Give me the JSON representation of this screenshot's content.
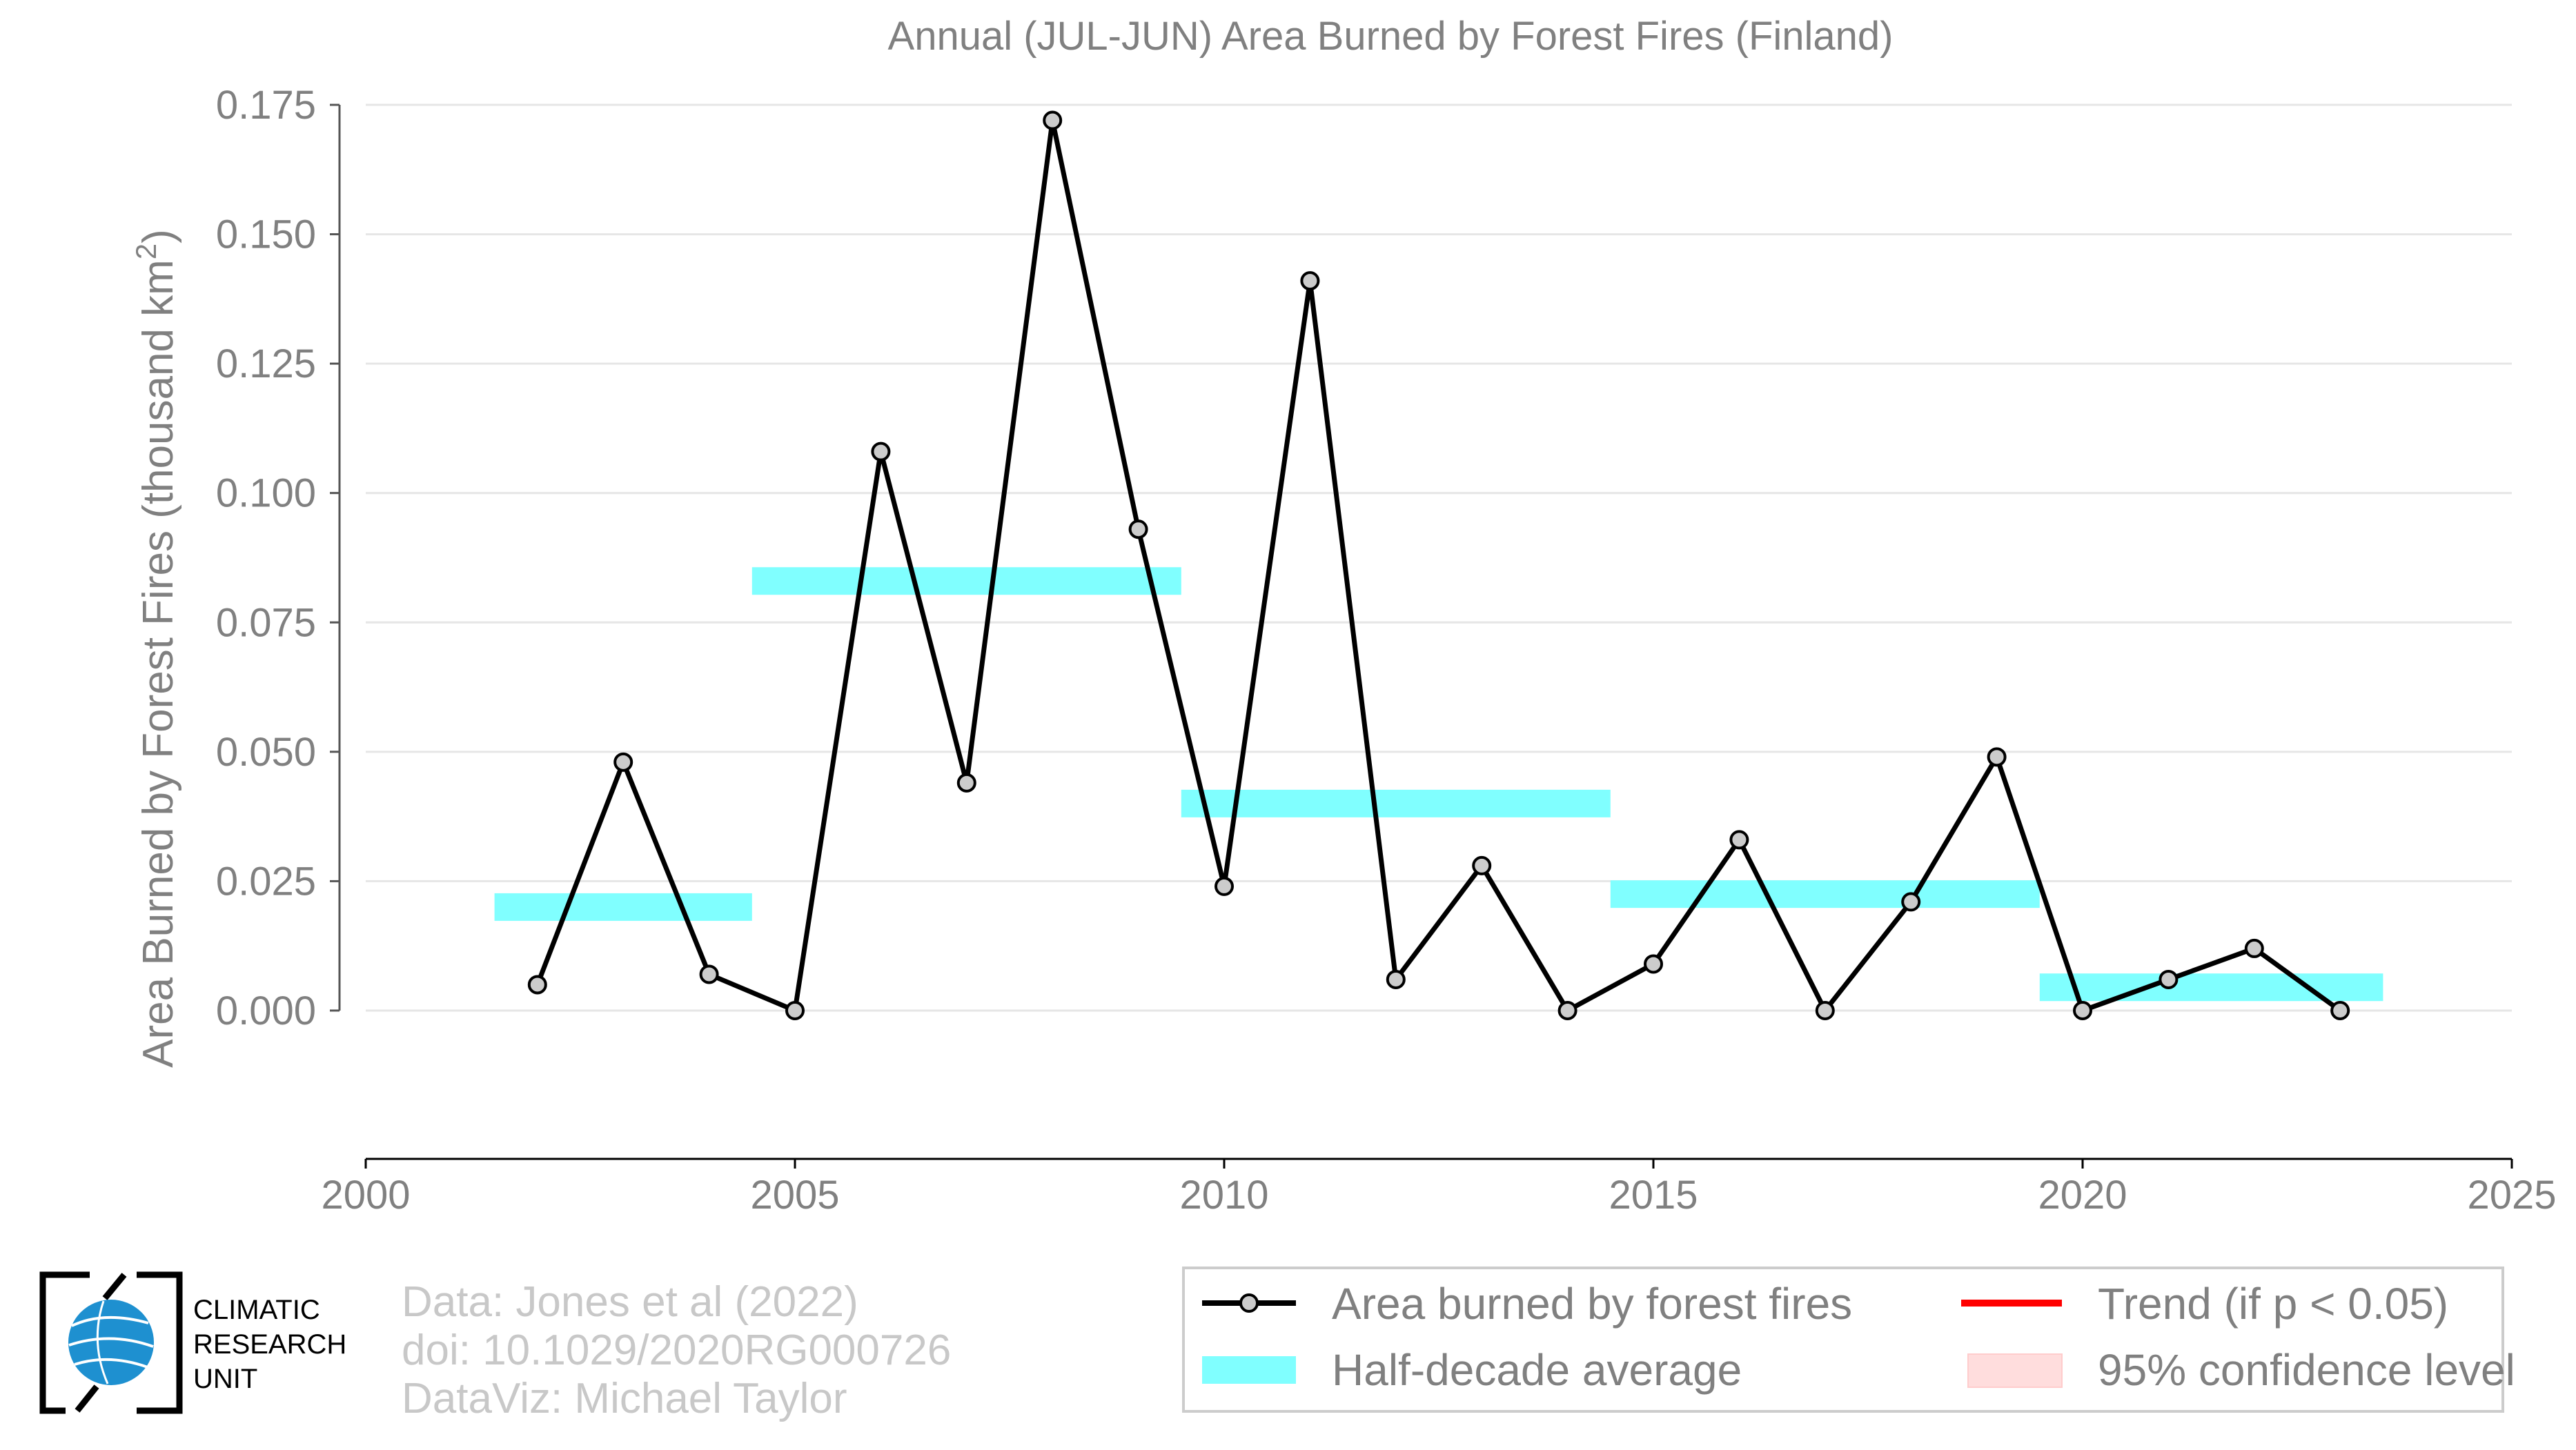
{
  "chart_data": {
    "type": "line",
    "title": "Annual (JUL-JUN) Area Burned by Forest Fires (Finland)",
    "ylabel_main": "Area Burned by Forest Fires (thousand km",
    "ylabel_sup": "2",
    "ylabel_close": ")",
    "xlim": [
      2000,
      2025
    ],
    "ylim": [
      -0.014,
      0.175
    ],
    "x_ticks": [
      2000,
      2005,
      2010,
      2015,
      2020,
      2025
    ],
    "x_tick_labels": [
      "2000",
      "2005",
      "2010",
      "2015",
      "2020",
      "2025"
    ],
    "y_ticks": [
      0,
      0.025,
      0.05,
      0.075,
      0.1,
      0.125,
      0.15,
      0.175
    ],
    "y_tick_labels": [
      "0.000",
      "0.025",
      "0.050",
      "0.075",
      "0.100",
      "0.125",
      "0.150",
      "0.175"
    ],
    "grid": "horizontal",
    "series": [
      {
        "name": "Area burned by forest fires",
        "kind": "line-markers",
        "color": "#000000",
        "marker_fill": "#cccccc",
        "x": [
          2002,
          2003,
          2004,
          2005,
          2006,
          2007,
          2008,
          2009,
          2010,
          2011,
          2012,
          2013,
          2014,
          2015,
          2016,
          2017,
          2018,
          2019,
          2020,
          2021,
          2022,
          2023
        ],
        "y": [
          0.005,
          0.048,
          0.007,
          0.0,
          0.108,
          0.044,
          0.172,
          0.093,
          0.024,
          0.141,
          0.006,
          0.028,
          0.0,
          0.009,
          0.033,
          0.0,
          0.021,
          0.049,
          0.0,
          0.006,
          0.012,
          0.0
        ]
      },
      {
        "name": "Half-decade average",
        "kind": "segments",
        "color": "#80ffff",
        "segments": [
          {
            "x_start": 2001.5,
            "x_end": 2004.5,
            "y": 0.02
          },
          {
            "x_start": 2004.5,
            "x_end": 2009.5,
            "y": 0.083
          },
          {
            "x_start": 2009.5,
            "x_end": 2014.5,
            "y": 0.04
          },
          {
            "x_start": 2014.5,
            "x_end": 2019.5,
            "y": 0.0225
          },
          {
            "x_start": 2019.5,
            "x_end": 2023.5,
            "y": 0.0045
          }
        ]
      }
    ],
    "legend": {
      "placement": "bottom-right",
      "items": [
        {
          "label": "Area burned by forest fires",
          "kind": "line-marker",
          "color": "#000000"
        },
        {
          "label": "Trend (if p < 0.05)",
          "kind": "line",
          "color": "#ff0000"
        },
        {
          "label": "Half-decade average",
          "kind": "band",
          "color": "#80ffff"
        },
        {
          "label": "95% confidence level",
          "kind": "band",
          "color": "#ffdddd"
        }
      ]
    }
  },
  "credits": {
    "line1": "Data: Jones et al (2022)",
    "line2": "doi: 10.1029/2020RG000726",
    "line3": "DataViz: Michael Taylor"
  },
  "logo": {
    "line1": "CLIMATIC",
    "line2": "RESEARCH",
    "line3": "UNIT",
    "globe_color": "#1e90d0"
  }
}
